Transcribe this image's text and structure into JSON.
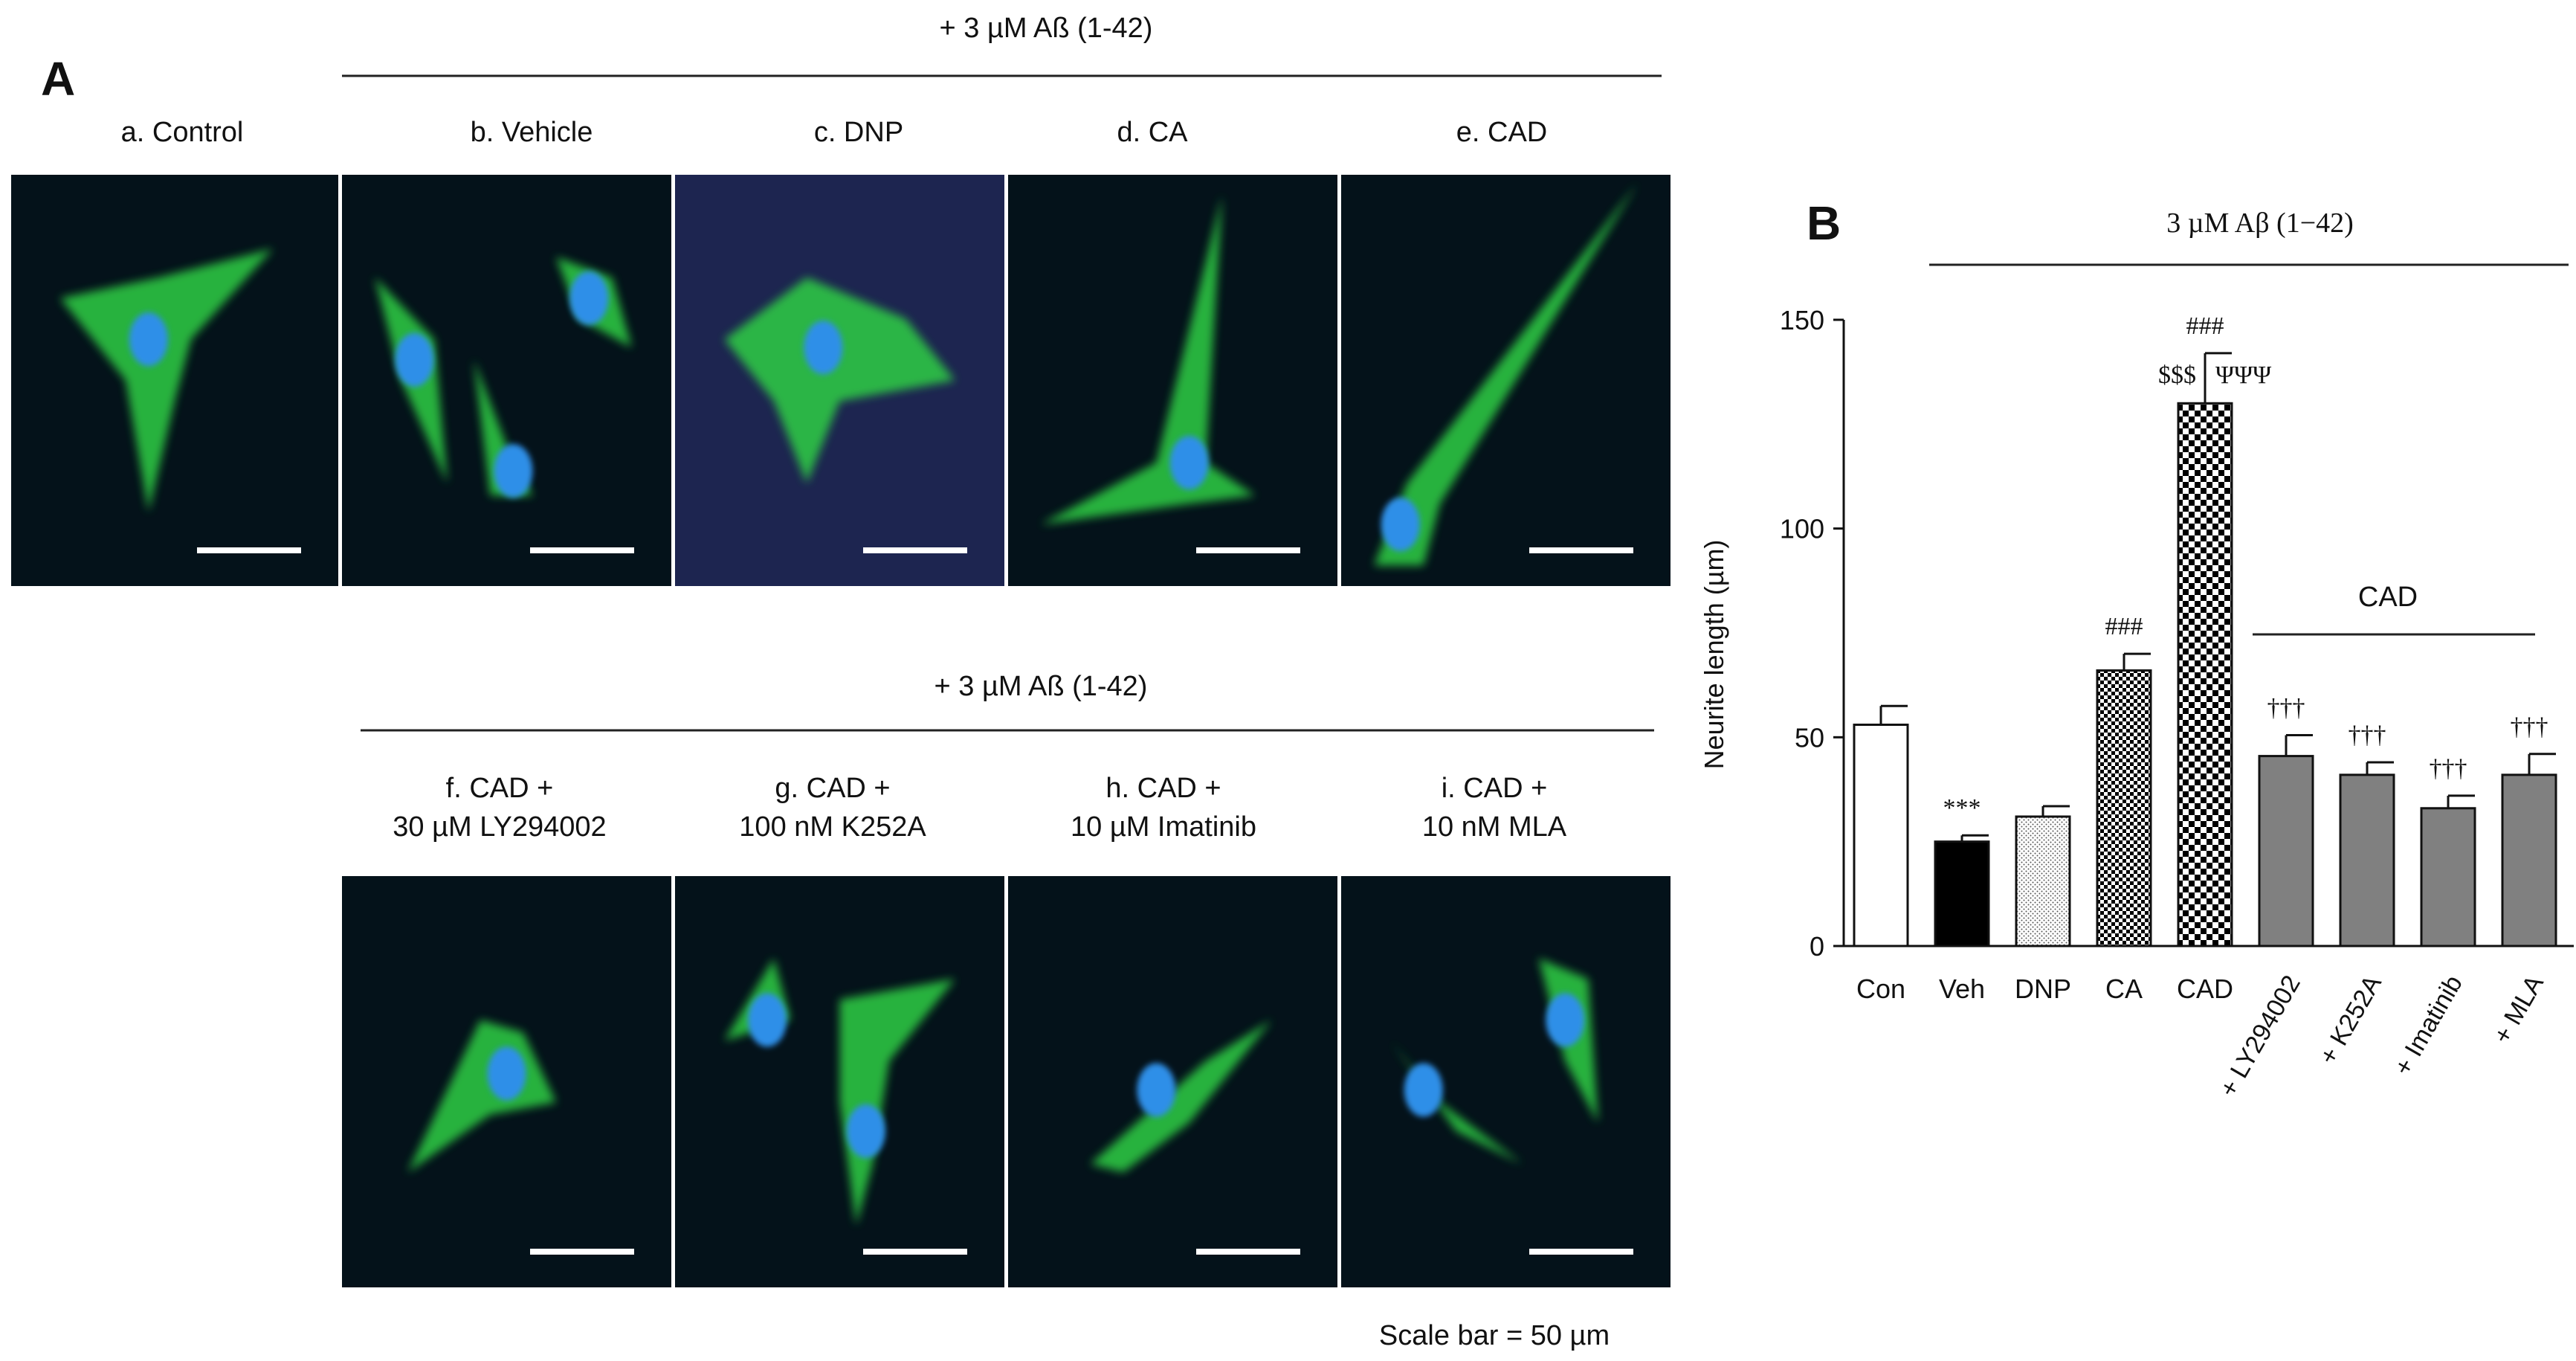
{
  "panel_a": {
    "letter": "A",
    "top_header": "+ 3 µM Aß (1-42)",
    "bottom_header": "+ 3 µM Aß (1-42)",
    "top_captions": [
      "a. Control",
      "b. Vehicle",
      "c. DNP",
      "d. CA",
      "e. CAD"
    ],
    "bottom_captions": [
      [
        "f. CAD +",
        "30 µM LY294002"
      ],
      [
        "g. CAD +",
        "100 nM K252A"
      ],
      [
        "h. CAD +",
        "10 µM Imatinib"
      ],
      [
        "i. CAD +",
        "10 nM MLA"
      ]
    ],
    "scale_bar_note": "Scale bar = 50 µm",
    "colors": {
      "background": "#04121a",
      "cytoplasm": "#2fcf45",
      "nucleus": "#2f8fe8",
      "dnp_background": "#1d2550",
      "scale_bar": "#ffffff"
    }
  },
  "panel_b": {
    "letter": "B",
    "header": "3 µM Aβ (1−42)",
    "sub_header": "CAD"
  },
  "chart_data": {
    "type": "bar",
    "categories": [
      "Con",
      "Veh",
      "DNP",
      "CA",
      "CAD",
      "+ LY294002",
      "+ K252A",
      "+ Imatinib",
      "+ MLA"
    ],
    "values": [
      53,
      25,
      31,
      66,
      130,
      45.5,
      41,
      33,
      41
    ],
    "errors": [
      4.5,
      1.5,
      2.5,
      4,
      12,
      5,
      3,
      3,
      5
    ],
    "annotations": [
      [],
      [
        "***"
      ],
      [],
      [
        "###"
      ],
      [
        "###",
        "$$$",
        "ΨΨΨ"
      ],
      [
        "†††"
      ],
      [
        "†††"
      ],
      [
        "†††"
      ],
      [
        "†††"
      ]
    ],
    "bar_styles": [
      "white",
      "black",
      "dots",
      "checker-small",
      "checker-large",
      "gray",
      "gray",
      "gray",
      "gray"
    ],
    "ylabel": "Neurite length (µm)",
    "xlabel": "",
    "title": "",
    "ylim": [
      0,
      150
    ],
    "yticks": [
      0,
      50,
      100,
      150
    ],
    "grid": false,
    "colors": {
      "gray": "#808080",
      "black": "#000000",
      "white": "#ffffff"
    }
  }
}
